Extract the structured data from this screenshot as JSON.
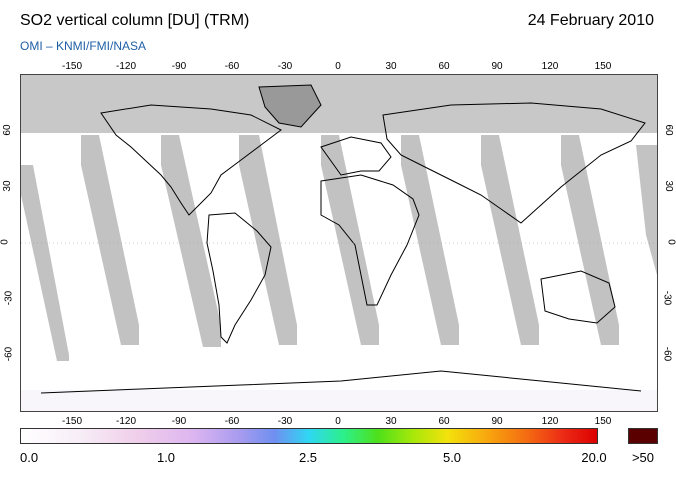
{
  "header": {
    "title": "SO2 vertical column [DU] (TRM)",
    "date": "24 February 2010",
    "subtitle": "OMI  –  KNMI/FMI/NASA"
  },
  "map": {
    "lon_ticks": [
      "-150",
      "-120",
      "-90",
      "-60",
      "-30",
      "0",
      "30",
      "60",
      "90",
      "120",
      "150"
    ],
    "lat_ticks": [
      "60",
      "30",
      "0",
      "-30",
      "-60"
    ],
    "colors": {
      "no_data": "#c8c8c8",
      "swath_gap": "#b4b4b4",
      "land_outline": "#000000",
      "background": "#ffffff"
    }
  },
  "colorbar": {
    "labels": [
      "0.0",
      "1.0",
      "2.5",
      "5.0",
      "20.0"
    ],
    "overflow_label": ">50",
    "overflow_color": "#5a0000"
  }
}
